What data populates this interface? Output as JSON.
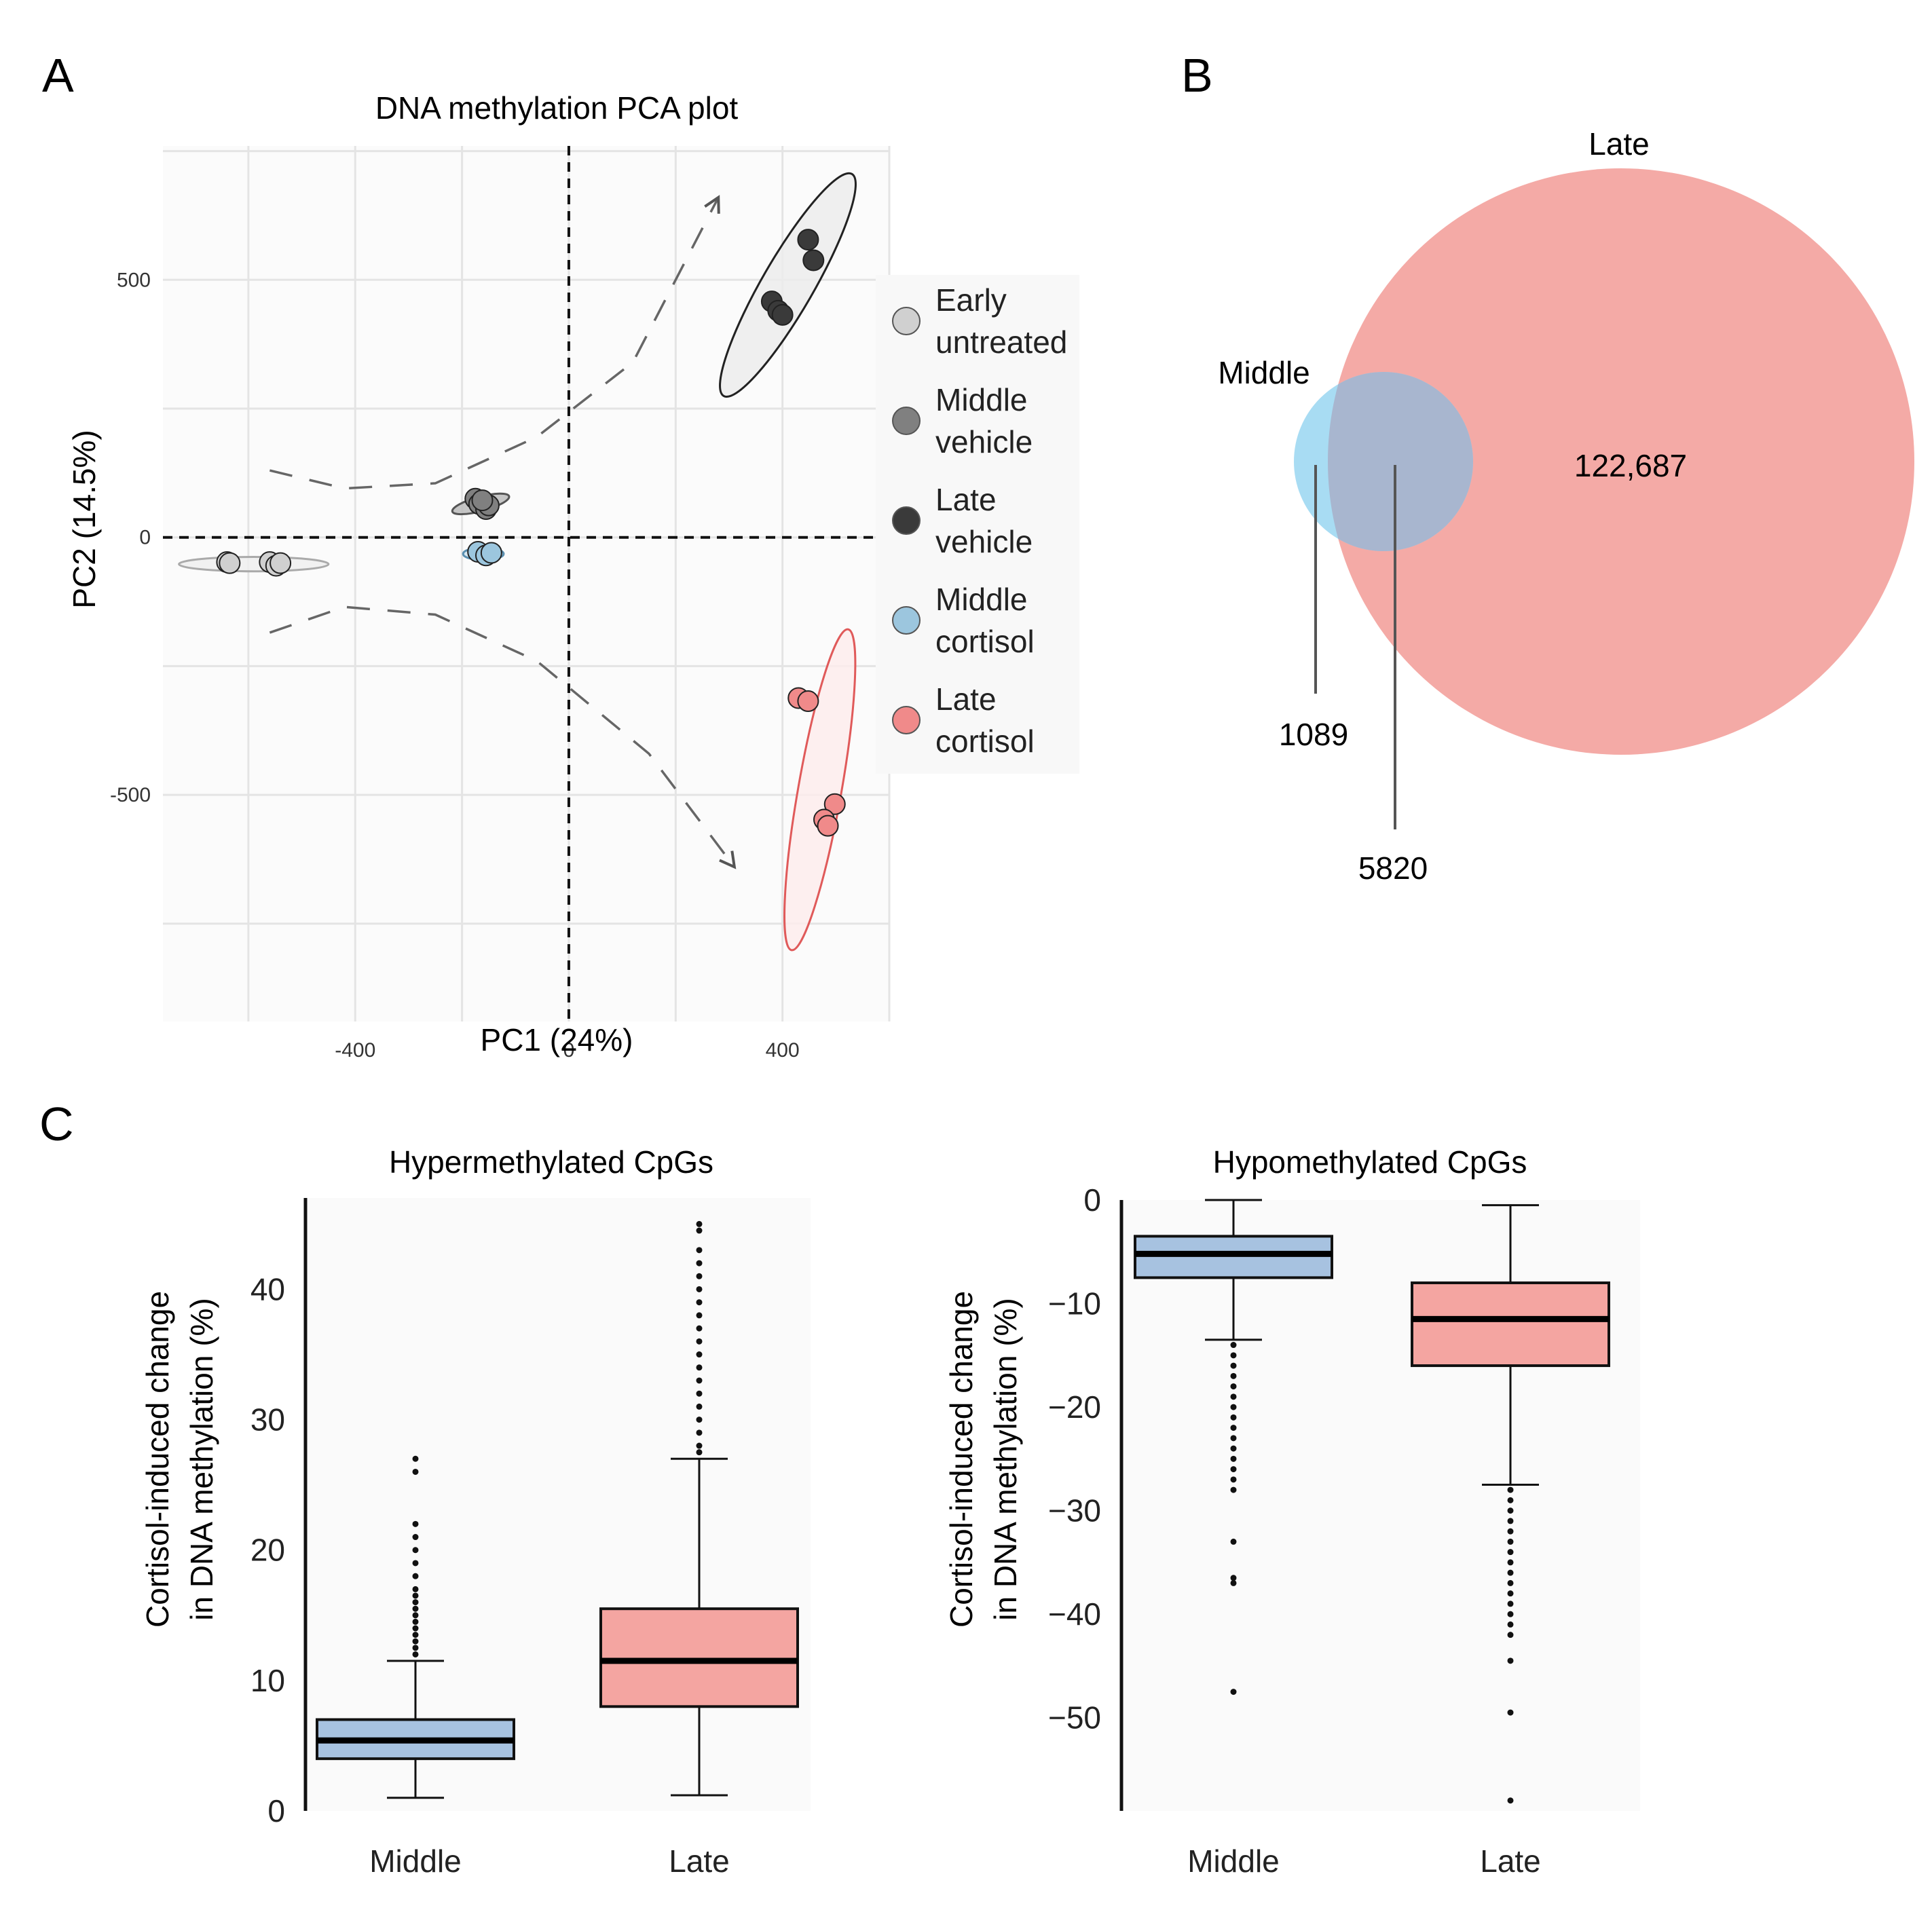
{
  "panel_labels": [
    "A",
    "B",
    "C"
  ],
  "colors": {
    "early_untreated": "#d0d0d0",
    "middle_vehicle": "#808080",
    "late_vehicle": "#3a3a3a",
    "middle_cortisol": "#9cc6de",
    "late_cortisol": "#f08a8a",
    "venn_middle": "#a8dcf3",
    "venn_late": "#f4aaa6",
    "venn_overlap": "#a8b6cf",
    "box_middle": "#a7c2e0",
    "box_late": "#f4a5a1"
  },
  "chart_data": [
    {
      "id": "pca",
      "type": "scatter",
      "title": "DNA methylation PCA plot",
      "xlabel": "PC1 (24%)",
      "ylabel": "PC2 (14.5%)",
      "xlim": [
        -760,
        600
      ],
      "ylim": [
        -940,
        760
      ],
      "xticks": [
        -400,
        0,
        400
      ],
      "yticks": [
        500,
        0,
        -500
      ],
      "xtick_labels": [
        "-400",
        "0",
        "400"
      ],
      "ytick_labels": [
        "500",
        "0",
        "-500"
      ],
      "grid": true,
      "reference_lines": {
        "x": 0,
        "y": 0
      },
      "legend_position": "right",
      "series": [
        {
          "key": "early_untreated",
          "name": [
            "Early",
            "untreated"
          ],
          "points": [
            [
              -640,
              -48
            ],
            [
              -635,
              -50
            ],
            [
              -560,
              -48
            ],
            [
              -548,
              -55
            ],
            [
              -540,
              -50
            ]
          ],
          "ellipse": {
            "cx": -590,
            "cy": -52,
            "rx": 140,
            "ry": 14,
            "angle": 0,
            "stroke": "#aaaaaa",
            "fill": "#eeeeee"
          }
        },
        {
          "key": "middle_vehicle",
          "name": [
            "Middle",
            "vehicle"
          ],
          "points": [
            [
              -175,
              75
            ],
            [
              -168,
              65
            ],
            [
              -155,
              55
            ],
            [
              -150,
              62
            ],
            [
              -162,
              72
            ]
          ],
          "ellipse": {
            "cx": -165,
            "cy": 65,
            "rx": 55,
            "ry": 14,
            "angle": 15,
            "stroke": "#555555",
            "fill": "#bbbbbb"
          }
        },
        {
          "key": "late_vehicle",
          "name": [
            "Late",
            "vehicle"
          ],
          "points": [
            [
              448,
              578
            ],
            [
              458,
              538
            ],
            [
              380,
              458
            ],
            [
              392,
              440
            ],
            [
              400,
              432
            ]
          ],
          "ellipse": {
            "cx": 410,
            "cy": 490,
            "rx": 240,
            "ry": 50,
            "angle": 60,
            "stroke": "#222222",
            "fill": "#ececec"
          }
        },
        {
          "key": "middle_cortisol",
          "name": [
            "Middle",
            "cortisol"
          ],
          "points": [
            [
              -170,
              -28
            ],
            [
              -155,
              -35
            ],
            [
              -145,
              -30
            ]
          ],
          "ellipse": {
            "cx": -160,
            "cy": -32,
            "rx": 38,
            "ry": 12,
            "angle": 0,
            "stroke": "#5a8fb0",
            "fill": "#cfe3ef"
          }
        },
        {
          "key": "late_cortisol",
          "name": [
            "Late",
            "cortisol"
          ],
          "points": [
            [
              430,
              -312
            ],
            [
              448,
              -318
            ],
            [
              498,
              -518
            ],
            [
              478,
              -548
            ],
            [
              485,
              -560
            ]
          ],
          "ellipse": {
            "cx": 470,
            "cy": -490,
            "rx": 305,
            "ry": 42,
            "angle": 80,
            "stroke": "#e05a5a",
            "fill": "#fdecec"
          }
        }
      ],
      "arrows": [
        {
          "path": [
            [
              -560,
              130
            ],
            [
              -420,
              95
            ],
            [
              -250,
              105
            ],
            [
              -60,
              195
            ],
            [
              120,
              340
            ],
            [
              280,
              660
            ]
          ]
        },
        {
          "path": [
            [
              -560,
              -185
            ],
            [
              -420,
              -135
            ],
            [
              -250,
              -150
            ],
            [
              -60,
              -240
            ],
            [
              150,
              -420
            ],
            [
              310,
              -640
            ]
          ]
        }
      ]
    },
    {
      "id": "venn",
      "type": "venn",
      "sets": [
        {
          "label": "Late",
          "value": "122,687"
        },
        {
          "label": "Middle",
          "value": "1089"
        }
      ],
      "overlap_value": "5820"
    },
    {
      "id": "box_hyper",
      "type": "box",
      "title": "Hypermethylated CpGs",
      "ylabel": [
        "Cortisol-induced change",
        "in DNA methylation (%)"
      ],
      "categories": [
        "Middle",
        "Late"
      ],
      "ylim": [
        0,
        47
      ],
      "yticks": [
        0,
        10,
        20,
        30,
        40
      ],
      "ytick_labels": [
        "0",
        "10",
        "20",
        "30",
        "40"
      ],
      "boxes": [
        {
          "category": "Middle",
          "whisker_low": 1.0,
          "q1": 4.0,
          "median": 5.4,
          "q3": 7.0,
          "whisker_high": 11.5,
          "outliers": [
            12,
            12.5,
            13,
            13.5,
            14,
            14.5,
            15,
            15.5,
            16,
            16.5,
            17,
            18,
            19,
            20,
            21,
            22,
            26,
            27
          ]
        },
        {
          "category": "Late",
          "whisker_low": 1.2,
          "q1": 8.0,
          "median": 11.5,
          "q3": 15.5,
          "whisker_high": 27,
          "outliers": [
            27.5,
            28,
            29,
            30,
            31,
            32,
            33,
            34,
            35,
            36,
            37,
            38,
            39,
            40,
            41,
            42,
            43,
            44.5,
            45
          ]
        }
      ]
    },
    {
      "id": "box_hypo",
      "type": "box",
      "title": "Hypomethylated CpGs",
      "ylabel": [
        "Cortisol-induced change",
        "in DNA methylation (%)"
      ],
      "categories": [
        "Middle",
        "Late"
      ],
      "ylim": [
        -59,
        0
      ],
      "yticks": [
        0,
        -10,
        -20,
        -30,
        -40,
        -50
      ],
      "ytick_labels": [
        "0",
        "−10",
        "−20",
        "−30",
        "−40",
        "−50"
      ],
      "boxes": [
        {
          "category": "Middle",
          "whisker_low": -13.5,
          "q1": -7.5,
          "median": -5.2,
          "q3": -3.5,
          "whisker_high": 0,
          "outliers": [
            -14,
            -15,
            -16,
            -17,
            -18,
            -19,
            -20,
            -21,
            -22,
            -23,
            -24,
            -25,
            -26,
            -27,
            -28,
            -33,
            -36.5,
            -37,
            -47.5
          ]
        },
        {
          "category": "Late",
          "whisker_low": -27.5,
          "q1": -16.0,
          "median": -11.5,
          "q3": -8.0,
          "whisker_high": -0.5,
          "outliers": [
            -28,
            -29,
            -30,
            -31,
            -32,
            -33,
            -34,
            -35,
            -36,
            -37,
            -38,
            -39,
            -40,
            -41,
            -42,
            -44.5,
            -49.5,
            -58
          ]
        }
      ]
    }
  ]
}
